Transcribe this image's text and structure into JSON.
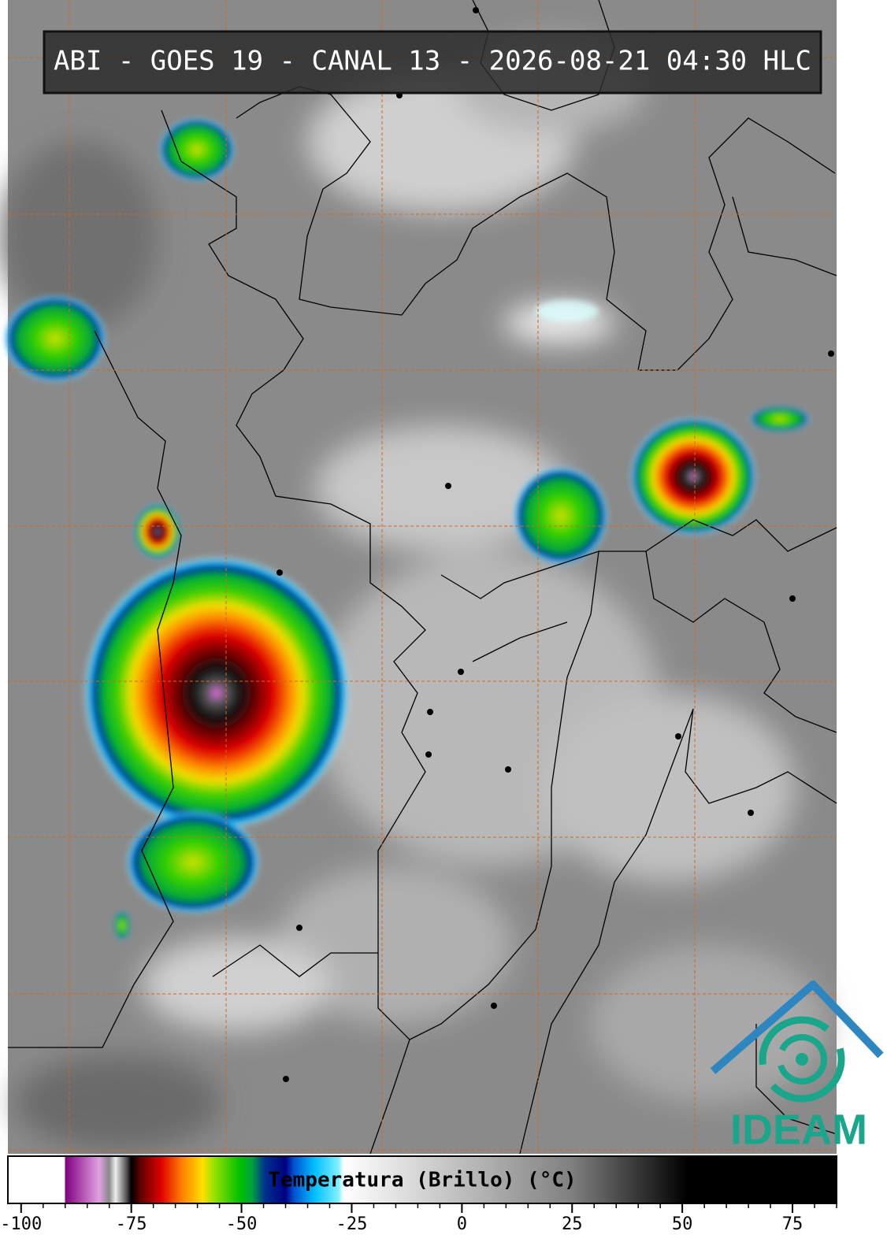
{
  "title": "ABI - GOES 19 - CANAL 13 - 2026-08-21 04:30 HLC",
  "colorbar": {
    "label": "Temperatura (Brillo) (°C)",
    "lim": [
      -103,
      85
    ],
    "ticks": [
      -100,
      -75,
      -50,
      -25,
      0,
      25,
      50,
      75
    ],
    "minor_step": 5
  },
  "logo": {
    "text": "IDEAM"
  }
}
